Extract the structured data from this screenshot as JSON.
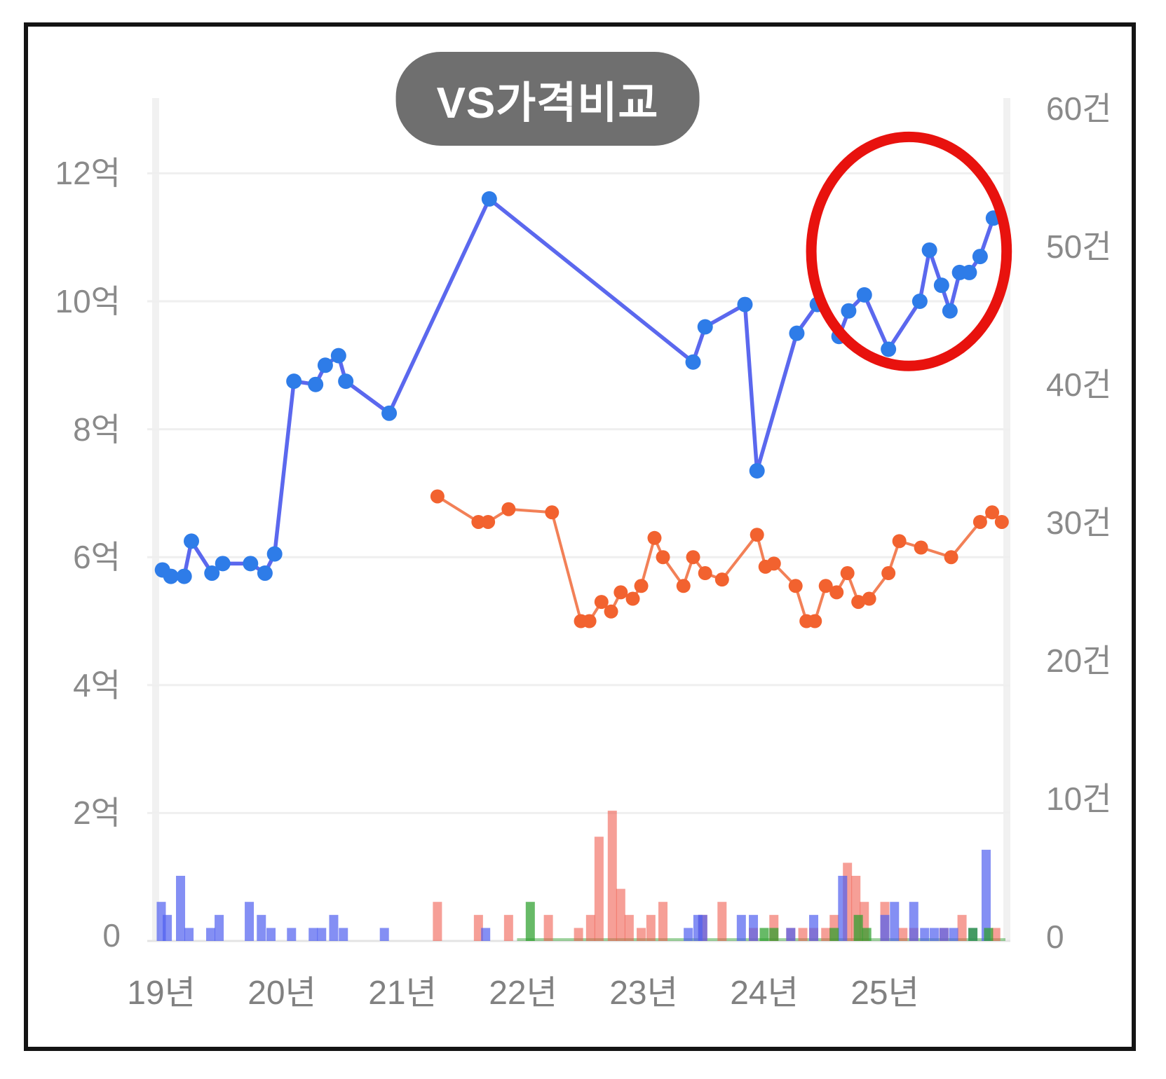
{
  "title": {
    "text": "VS가격비교"
  },
  "colors": {
    "title_bg": "#6f6f6f",
    "title_text": "#ffffff",
    "blue_line": "#5b68ee",
    "blue_marker": "#2e7ce8",
    "orange_line": "#f28057",
    "orange_marker": "#f2622f",
    "bar_blue": "rgba(80,95,240,0.70)",
    "bar_red": "rgba(240,90,75,0.58)",
    "bar_green": "rgba(45,160,45,0.72)",
    "annotation_circle": "#e8120e",
    "grid": "#efefef",
    "edge_band": "#f1f1f1",
    "baseline": "#e4e4e4",
    "axis_text": "#8a8a8a",
    "frame": "#141414"
  },
  "axes": {
    "left": {
      "unit": "억",
      "ticks": [
        "12억",
        "10억",
        "8억",
        "6억",
        "4억",
        "2억",
        "0"
      ],
      "values": [
        12,
        10,
        8,
        6,
        4,
        2,
        0
      ]
    },
    "right": {
      "unit": "건",
      "ticks": [
        "60건",
        "50건",
        "40건",
        "30건",
        "20건",
        "10건",
        "0"
      ],
      "values": [
        60,
        50,
        40,
        30,
        20,
        10,
        0
      ]
    },
    "x": {
      "ticks": [
        "19년",
        "20년",
        "21년",
        "22년",
        "23년",
        "24년",
        "25년"
      ],
      "values": [
        19,
        20,
        21,
        22,
        23,
        24,
        25
      ]
    }
  },
  "chart_data": {
    "type": "line+bar combo",
    "title": "VS가격비교",
    "x_unit": "decimal year (19 = Jan 2019)",
    "xlim": [
      18.88,
      26.05
    ],
    "ylim_left_eok": [
      0,
      13.1
    ],
    "ylim_right_cases": [
      0,
      65.5
    ],
    "grid": "horizontal only, at every 2억",
    "legend": "none",
    "series": [
      {
        "name": "blue-price-line",
        "type": "line",
        "axis": "left",
        "unit": "억",
        "points": [
          [
            19.01,
            5.8
          ],
          [
            19.08,
            5.7
          ],
          [
            19.19,
            5.7
          ],
          [
            19.25,
            6.25
          ],
          [
            19.42,
            5.75
          ],
          [
            19.51,
            5.9
          ],
          [
            19.74,
            5.9
          ],
          [
            19.86,
            5.75
          ],
          [
            19.94,
            6.05
          ],
          [
            20.1,
            8.75
          ],
          [
            20.28,
            8.7
          ],
          [
            20.36,
            9.0
          ],
          [
            20.47,
            9.15
          ],
          [
            20.53,
            8.75
          ],
          [
            20.89,
            8.25
          ],
          [
            21.72,
            11.6
          ],
          [
            23.41,
            9.05
          ],
          [
            23.51,
            9.6
          ],
          [
            23.84,
            9.95
          ],
          [
            23.94,
            7.35
          ],
          [
            24.27,
            9.5
          ],
          [
            24.44,
            9.95
          ],
          [
            24.62,
            9.45
          ],
          [
            24.7,
            9.85
          ],
          [
            24.83,
            10.1
          ],
          [
            25.03,
            9.25
          ],
          [
            25.29,
            10.0
          ],
          [
            25.37,
            10.8
          ],
          [
            25.47,
            10.25
          ],
          [
            25.54,
            9.85
          ],
          [
            25.62,
            10.45
          ],
          [
            25.7,
            10.45
          ],
          [
            25.79,
            10.7
          ],
          [
            25.9,
            11.3
          ]
        ]
      },
      {
        "name": "orange-price-line",
        "type": "line",
        "axis": "left",
        "unit": "억",
        "points": [
          [
            21.29,
            6.95
          ],
          [
            21.63,
            6.55
          ],
          [
            21.71,
            6.55
          ],
          [
            21.88,
            6.75
          ],
          [
            22.24,
            6.7
          ],
          [
            22.48,
            5.0
          ],
          [
            22.55,
            5.0
          ],
          [
            22.65,
            5.3
          ],
          [
            22.73,
            5.15
          ],
          [
            22.81,
            5.45
          ],
          [
            22.91,
            5.35
          ],
          [
            22.98,
            5.55
          ],
          [
            23.09,
            6.3
          ],
          [
            23.16,
            6.0
          ],
          [
            23.33,
            5.55
          ],
          [
            23.41,
            6.0
          ],
          [
            23.51,
            5.75
          ],
          [
            23.65,
            5.65
          ],
          [
            23.94,
            6.35
          ],
          [
            24.01,
            5.85
          ],
          [
            24.08,
            5.9
          ],
          [
            24.26,
            5.55
          ],
          [
            24.35,
            5.0
          ],
          [
            24.42,
            5.0
          ],
          [
            24.51,
            5.55
          ],
          [
            24.6,
            5.45
          ],
          [
            24.69,
            5.75
          ],
          [
            24.78,
            5.3
          ],
          [
            24.87,
            5.35
          ],
          [
            25.03,
            5.75
          ],
          [
            25.12,
            6.25
          ],
          [
            25.3,
            6.15
          ],
          [
            25.55,
            6.0
          ],
          [
            25.79,
            6.55
          ],
          [
            25.89,
            6.7
          ],
          [
            25.97,
            6.55
          ]
        ]
      },
      {
        "name": "blue-volume-bars",
        "type": "bar",
        "axis": "right",
        "unit": "건",
        "points": [
          [
            19.0,
            3
          ],
          [
            19.05,
            2
          ],
          [
            19.16,
            5
          ],
          [
            19.23,
            1
          ],
          [
            19.41,
            1
          ],
          [
            19.48,
            2
          ],
          [
            19.73,
            3
          ],
          [
            19.83,
            2
          ],
          [
            19.91,
            1
          ],
          [
            20.08,
            1
          ],
          [
            20.26,
            1
          ],
          [
            20.33,
            1
          ],
          [
            20.43,
            2
          ],
          [
            20.51,
            1
          ],
          [
            20.85,
            1
          ],
          [
            21.69,
            1
          ],
          [
            23.37,
            1
          ],
          [
            23.45,
            2
          ],
          [
            23.49,
            2
          ],
          [
            23.81,
            2
          ],
          [
            23.91,
            2
          ],
          [
            24.22,
            1
          ],
          [
            24.41,
            2
          ],
          [
            24.65,
            5
          ],
          [
            25.0,
            2
          ],
          [
            25.08,
            3
          ],
          [
            25.24,
            3
          ],
          [
            25.33,
            1
          ],
          [
            25.41,
            1
          ],
          [
            25.49,
            1
          ],
          [
            25.57,
            1
          ],
          [
            25.73,
            1
          ],
          [
            25.84,
            7
          ]
        ]
      },
      {
        "name": "red-volume-bars",
        "type": "bar",
        "axis": "right",
        "unit": "건",
        "points": [
          [
            21.29,
            3
          ],
          [
            21.63,
            2
          ],
          [
            21.88,
            2
          ],
          [
            22.21,
            2
          ],
          [
            22.46,
            1
          ],
          [
            22.56,
            2
          ],
          [
            22.63,
            8
          ],
          [
            22.74,
            10
          ],
          [
            22.81,
            4
          ],
          [
            22.88,
            2
          ],
          [
            22.98,
            1
          ],
          [
            23.06,
            2
          ],
          [
            23.16,
            3
          ],
          [
            23.49,
            2
          ],
          [
            23.65,
            3
          ],
          [
            23.91,
            1
          ],
          [
            24.08,
            2
          ],
          [
            24.22,
            1
          ],
          [
            24.32,
            1
          ],
          [
            24.41,
            1
          ],
          [
            24.51,
            1
          ],
          [
            24.58,
            2
          ],
          [
            24.69,
            6
          ],
          [
            24.76,
            5
          ],
          [
            24.83,
            3
          ],
          [
            25.0,
            3
          ],
          [
            25.15,
            1
          ],
          [
            25.24,
            1
          ],
          [
            25.49,
            1
          ],
          [
            25.64,
            2
          ],
          [
            25.92,
            1
          ]
        ]
      },
      {
        "name": "green-volume-bars",
        "type": "bar",
        "axis": "right",
        "unit": "건",
        "points": [
          [
            22.06,
            3
          ],
          [
            24.0,
            1
          ],
          [
            24.08,
            1
          ],
          [
            24.58,
            1
          ],
          [
            24.78,
            2
          ],
          [
            24.85,
            1
          ],
          [
            25.73,
            1
          ],
          [
            25.86,
            1
          ]
        ]
      }
    ],
    "annotation": {
      "type": "ellipse-highlight",
      "around": "recent 2025 blue price points rising to 11.3억",
      "center_t": 25.2,
      "center_value_eok": 10.78,
      "rx_years": 0.81,
      "ry_eok": 1.79
    }
  }
}
